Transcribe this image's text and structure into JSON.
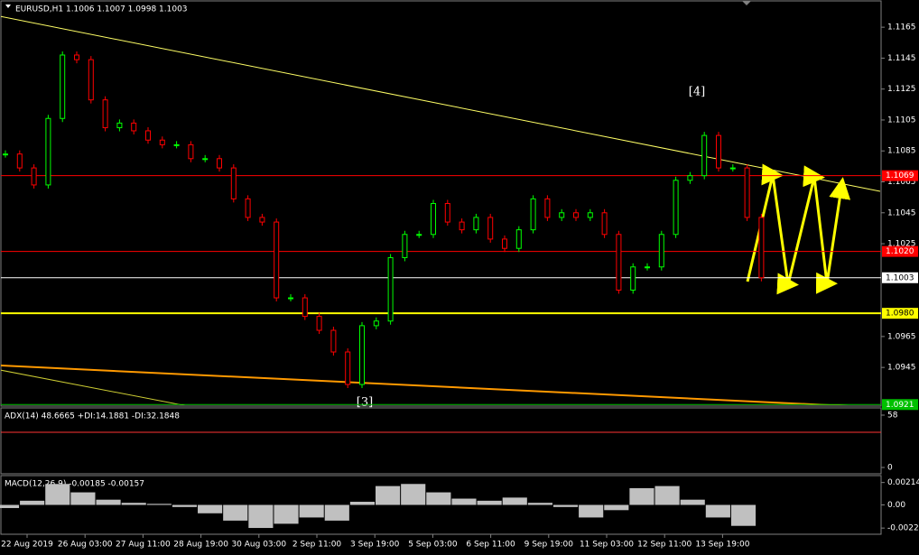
{
  "chart_data": [
    {
      "type": "candlestick",
      "title": "EURUSD,H1  1.1006 1.1007 1.0998 1.1003",
      "x_labels": [
        "22 Aug 2019",
        "26 Aug 03:00",
        "27 Aug 11:00",
        "28 Aug 19:00",
        "30 Aug 03:00",
        "2 Sep 11:00",
        "3 Sep 19:00",
        "5 Sep 03:00",
        "6 Sep 11:00",
        "9 Sep 19:00",
        "11 Sep 03:00",
        "12 Sep 11:00",
        "13 Sep 19:00"
      ],
      "close": [
        1.1083,
        1.1074,
        1.1063,
        1.1106,
        1.1147,
        1.1144,
        1.1118,
        1.11,
        1.1103,
        1.1098,
        1.1092,
        1.1089,
        1.1089,
        1.108,
        1.108,
        1.1074,
        1.1054,
        1.1042,
        1.1039,
        1.099,
        1.099,
        1.0978,
        1.0969,
        1.0955,
        1.0934,
        1.0972,
        1.0975,
        1.1016,
        1.1031,
        1.1031,
        1.1051,
        1.1039,
        1.1034,
        1.1042,
        1.1028,
        1.1022,
        1.1034,
        1.1054,
        1.1042,
        1.1045,
        1.1042,
        1.1045,
        1.1031,
        1.0995,
        1.101,
        1.101,
        1.1031,
        1.1066,
        1.1069,
        1.1095,
        1.1074,
        1.1074,
        1.1042,
        1.1003
      ],
      "up_color": "#00ff00",
      "down_color": "#ff0000",
      "ylim": [
        1.092,
        1.1182
      ],
      "yticks": [
        1.1165,
        1.1145,
        1.1125,
        1.1105,
        1.1085,
        1.1065,
        1.1045,
        1.1025,
        1.0965,
        1.0945
      ],
      "levels": [
        {
          "value": 1.1069,
          "label": "1.1069",
          "color": "#ff0000"
        },
        {
          "value": 1.102,
          "label": "1.1020",
          "color": "#ff0000"
        },
        {
          "value": 1.1003,
          "label": "1.1003",
          "color": "#ffffff"
        },
        {
          "value": 1.098,
          "label": "1.0980",
          "color": "#ffff00"
        },
        {
          "value": 1.0921,
          "label": "1.0921",
          "color": "#00c000"
        }
      ],
      "annotations": [
        "[4]",
        "[3]"
      ]
    },
    {
      "type": "indicator",
      "title": "ADX(14) 48.6665 +DI:14.1881 -DI:32.1848",
      "ylim": [
        -7,
        66
      ],
      "yticks": [
        58,
        0
      ]
    },
    {
      "type": "histogram",
      "title": "MACD(12,26,9) -0.00185 -0.00157",
      "values": [
        -0.0003,
        0.0004,
        0.002,
        0.0012,
        0.0005,
        0.0002,
        0.0001,
        -0.0002,
        -0.0008,
        -0.0015,
        -0.0022,
        -0.0018,
        -0.0012,
        -0.0015,
        0.0003,
        0.0018,
        0.002,
        0.0012,
        0.0006,
        0.0004,
        0.0007,
        0.0002,
        -0.0002,
        -0.0012,
        -0.0005,
        0.0016,
        0.0018,
        0.0005,
        -0.0012,
        -0.002
      ],
      "color": "#c0c0c0",
      "ylim": [
        -0.0028,
        0.0028
      ],
      "yticks": [
        0.00214,
        {
          "value": 0,
          "label": "0.00"
        },
        -0.00221
      ]
    }
  ]
}
